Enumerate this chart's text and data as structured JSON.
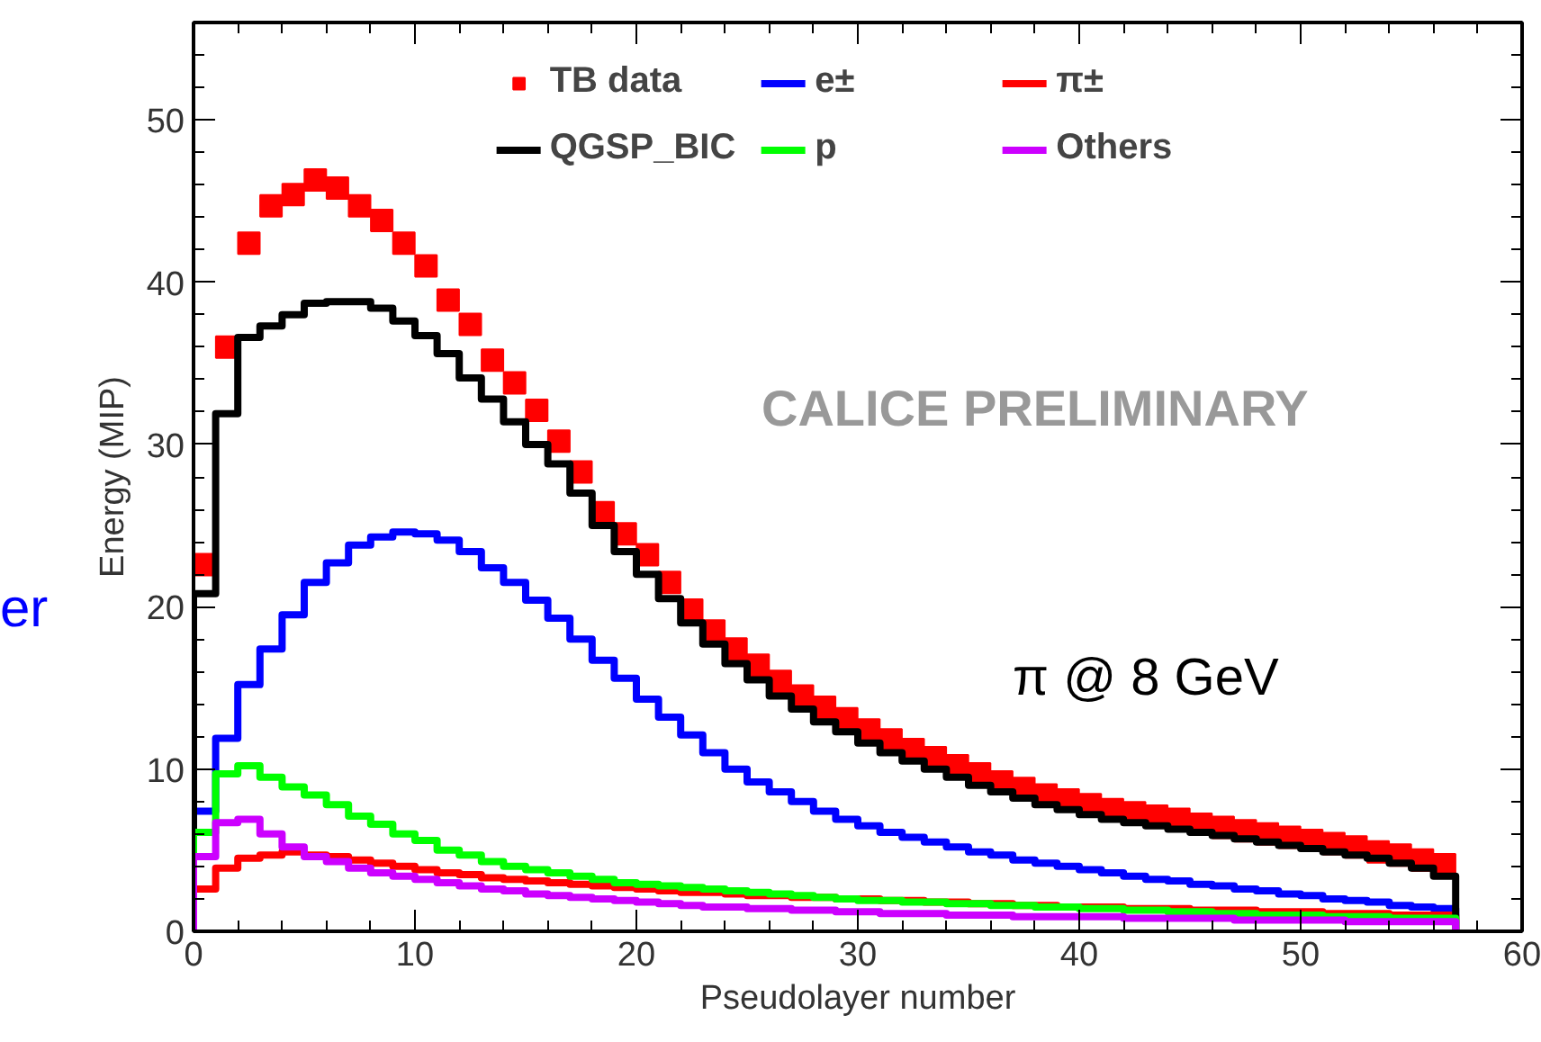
{
  "chart_data": {
    "type": "histogram",
    "xlabel": "Pseudolayer number",
    "ylabel": "Energy (MIP)",
    "bins": [
      0,
      1,
      2,
      3,
      4,
      5,
      6,
      7,
      8,
      9,
      10,
      11,
      12,
      13,
      14,
      15,
      16,
      17,
      18,
      19,
      20,
      21,
      22,
      23,
      24,
      25,
      26,
      27,
      28,
      29,
      30,
      31,
      32,
      33,
      34,
      35,
      36,
      37,
      38,
      39,
      40,
      41,
      42,
      43,
      44,
      45,
      46,
      47,
      48,
      49,
      50,
      51,
      52,
      53,
      54,
      55,
      56,
      57
    ],
    "xlim": [
      0,
      60
    ],
    "ylim": [
      0,
      56
    ],
    "xticks": [
      0,
      10,
      20,
      30,
      40,
      50,
      60
    ],
    "yticks": [
      0,
      10,
      20,
      30,
      40,
      50
    ],
    "grid": false,
    "legend": "top",
    "marker": "square",
    "series": [
      {
        "name": "TB data",
        "type": "scatter",
        "color": "#ff0000",
        "x": [
          0.5,
          1.5,
          2.5,
          3.5,
          4.5,
          5.5,
          6.5,
          7.5,
          8.5,
          9.5,
          10.5,
          11.5,
          12.5,
          13.5,
          14.5,
          15.5,
          16.5,
          17.5,
          18.5,
          19.5,
          20.5,
          21.5,
          22.5,
          23.5,
          24.5,
          25.5,
          26.5,
          27.5,
          28.5,
          29.5,
          30.5,
          31.5,
          32.5,
          33.5,
          34.5,
          35.5,
          36.5,
          37.5,
          38.5,
          39.5,
          40.5,
          41.5,
          42.5,
          43.5,
          44.5,
          45.5,
          46.5,
          47.5,
          48.5,
          49.5,
          50.5,
          51.5,
          52.5,
          53.5,
          54.5,
          55.5,
          56.5
        ],
        "values": [
          22.6,
          36.0,
          42.4,
          44.7,
          45.4,
          46.3,
          45.8,
          44.7,
          43.8,
          42.4,
          41.0,
          38.9,
          37.4,
          35.2,
          33.8,
          32.1,
          30.2,
          28.3,
          25.8,
          24.5,
          23.2,
          21.5,
          19.8,
          18.5,
          17.4,
          16.4,
          15.4,
          14.5,
          13.8,
          13.1,
          12.4,
          11.8,
          11.2,
          10.7,
          10.2,
          9.7,
          9.2,
          8.8,
          8.4,
          8.1,
          7.8,
          7.5,
          7.3,
          7.1,
          6.9,
          6.6,
          6.4,
          6.2,
          6.0,
          5.8,
          5.6,
          5.4,
          5.2,
          4.9,
          4.7,
          4.4,
          4.1
        ]
      },
      {
        "name": "e±",
        "color": "#0000ff",
        "values": [
          7.4,
          11.9,
          15.2,
          17.4,
          19.5,
          21.5,
          22.7,
          23.8,
          24.3,
          24.6,
          24.5,
          24.1,
          23.4,
          22.4,
          21.5,
          20.4,
          19.3,
          18.0,
          16.7,
          15.6,
          14.3,
          13.2,
          12.1,
          11.0,
          10.0,
          9.2,
          8.6,
          8.0,
          7.4,
          6.9,
          6.5,
          6.1,
          5.8,
          5.5,
          5.2,
          4.9,
          4.7,
          4.4,
          4.2,
          4.0,
          3.8,
          3.6,
          3.4,
          3.2,
          3.1,
          2.9,
          2.8,
          2.6,
          2.5,
          2.3,
          2.2,
          2.0,
          1.9,
          1.8,
          1.6,
          1.5,
          1.4
        ]
      },
      {
        "name": "π±",
        "color": "#ff0000",
        "values": [
          2.6,
          3.9,
          4.5,
          4.7,
          4.9,
          4.7,
          4.6,
          4.4,
          4.2,
          4.0,
          3.8,
          3.6,
          3.5,
          3.3,
          3.2,
          3.1,
          3.0,
          2.9,
          2.8,
          2.7,
          2.6,
          2.5,
          2.4,
          2.4,
          2.3,
          2.2,
          2.2,
          2.1,
          2.1,
          2.0,
          2.0,
          1.9,
          1.9,
          1.8,
          1.8,
          1.7,
          1.7,
          1.6,
          1.6,
          1.5,
          1.5,
          1.5,
          1.4,
          1.4,
          1.4,
          1.3,
          1.3,
          1.3,
          1.2,
          1.2,
          1.2,
          1.1,
          1.1,
          1.1,
          1.0,
          1.0,
          1.0
        ]
      },
      {
        "name": "QGSP_BIC",
        "color": "#000000",
        "values": [
          20.8,
          31.9,
          36.6,
          37.3,
          38.0,
          38.7,
          38.8,
          38.8,
          38.4,
          37.6,
          36.7,
          35.6,
          34.1,
          32.8,
          31.4,
          30.0,
          28.8,
          27.0,
          25.0,
          23.4,
          22.0,
          20.5,
          19.0,
          17.7,
          16.5,
          15.5,
          14.5,
          13.7,
          12.9,
          12.3,
          11.6,
          11.0,
          10.5,
          10.0,
          9.5,
          9.0,
          8.6,
          8.2,
          7.8,
          7.5,
          7.2,
          6.9,
          6.7,
          6.5,
          6.3,
          6.1,
          5.9,
          5.7,
          5.5,
          5.3,
          5.1,
          4.9,
          4.7,
          4.5,
          4.2,
          3.9,
          3.4
        ]
      },
      {
        "name": "p",
        "color": "#00ff00",
        "values": [
          6.1,
          9.7,
          10.2,
          9.5,
          8.9,
          8.4,
          7.8,
          7.1,
          6.6,
          6.0,
          5.6,
          5.0,
          4.7,
          4.3,
          4.0,
          3.8,
          3.6,
          3.4,
          3.2,
          3.0,
          2.9,
          2.8,
          2.7,
          2.6,
          2.5,
          2.4,
          2.3,
          2.2,
          2.1,
          2.0,
          1.9,
          1.9,
          1.8,
          1.8,
          1.7,
          1.7,
          1.6,
          1.6,
          1.5,
          1.5,
          1.4,
          1.4,
          1.3,
          1.3,
          1.2,
          1.2,
          1.1,
          1.1,
          1.0,
          1.0,
          1.0,
          0.9,
          0.9,
          0.9,
          0.8,
          0.8,
          0.8
        ]
      },
      {
        "name": "Others",
        "color": "#cc00ff",
        "values": [
          4.6,
          6.7,
          6.9,
          6.0,
          5.2,
          4.6,
          4.3,
          3.9,
          3.6,
          3.4,
          3.2,
          3.0,
          2.8,
          2.6,
          2.5,
          2.3,
          2.2,
          2.1,
          2.0,
          1.9,
          1.8,
          1.7,
          1.6,
          1.5,
          1.5,
          1.4,
          1.4,
          1.3,
          1.3,
          1.2,
          1.2,
          1.1,
          1.1,
          1.1,
          1.0,
          1.0,
          1.0,
          0.9,
          0.9,
          0.9,
          0.9,
          0.9,
          0.8,
          0.8,
          0.8,
          0.8,
          0.8,
          0.7,
          0.7,
          0.7,
          0.7,
          0.7,
          0.6,
          0.6,
          0.6,
          0.6,
          0.6
        ]
      }
    ],
    "annotations": [
      "CALICE PRELIMINARY",
      "π @ 8 GeV",
      "er"
    ]
  }
}
